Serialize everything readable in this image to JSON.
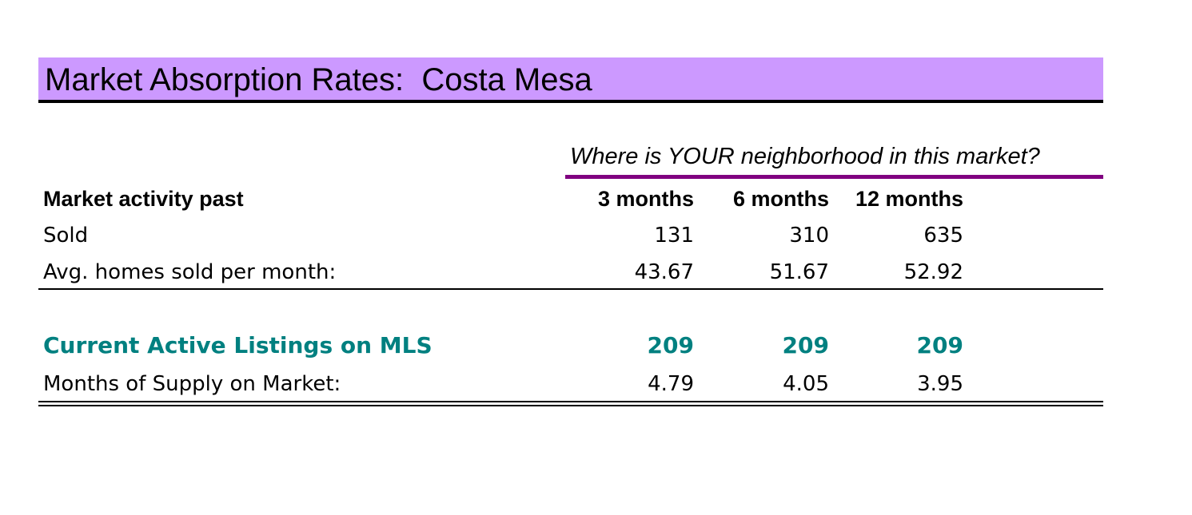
{
  "title": "Market Absorption Rates:  Costa Mesa",
  "subtitle": "Where is YOUR neighborhood in this market?",
  "colors": {
    "title_background": "#cc99ff",
    "subtitle_rule": "#800080",
    "highlight_text": "#008080"
  },
  "table": {
    "header": {
      "label": "Market activity past",
      "columns": [
        "3 months",
        "6 months",
        "12 months"
      ]
    },
    "sold": {
      "label": "Sold",
      "values": [
        "131",
        "310",
        "635"
      ]
    },
    "avg_per_month": {
      "label": "Avg. homes sold per month:",
      "values": [
        "43.67",
        "51.67",
        "52.92"
      ]
    },
    "active_listings": {
      "label": "Current Active Listings on MLS",
      "values": [
        "209",
        "209",
        "209"
      ]
    },
    "months_supply": {
      "label": "Months of Supply on Market:",
      "values": [
        "4.79",
        "4.05",
        "3.95"
      ]
    }
  }
}
